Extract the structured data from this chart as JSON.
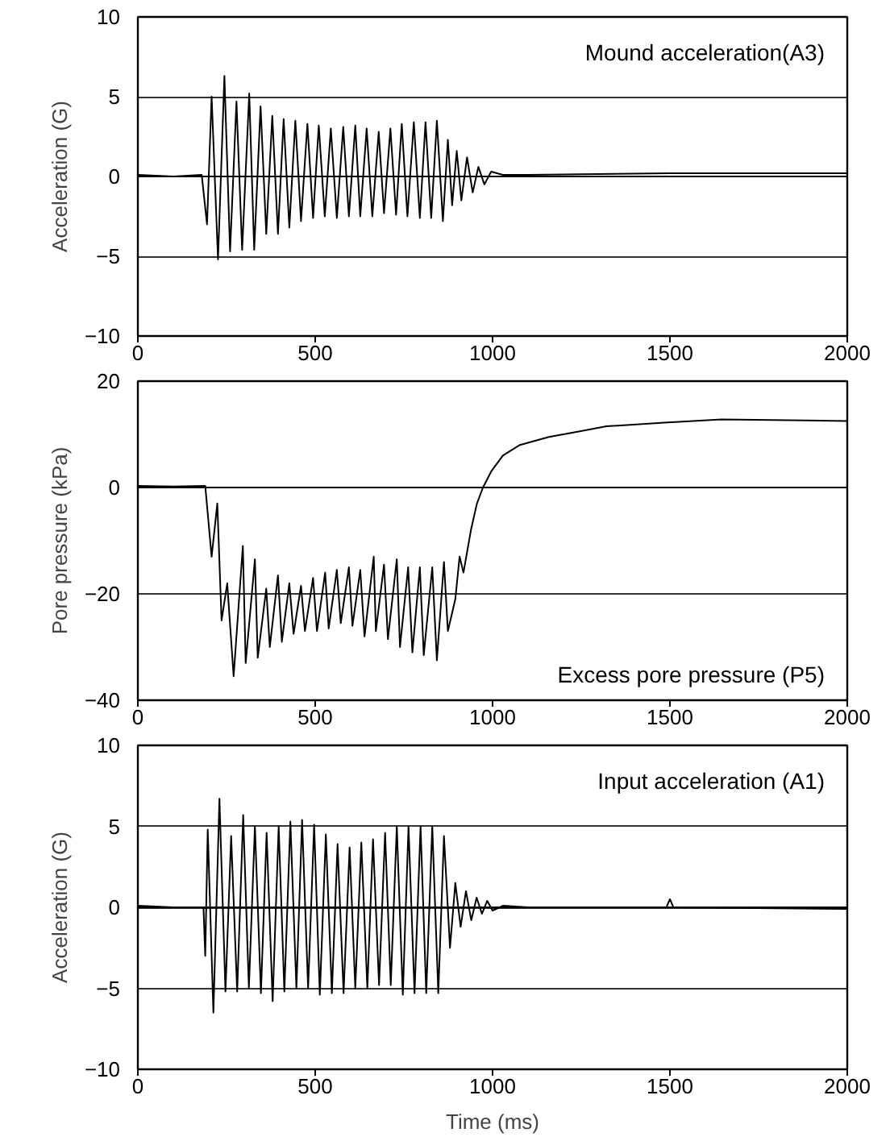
{
  "chart_data": [
    {
      "type": "line",
      "ylabel": "Acceleration (G)",
      "annotations": [
        "Mound acceleration(A3)"
      ],
      "xlim": [
        0,
        2000
      ],
      "xticks": [
        0,
        500,
        1000,
        1500,
        2000
      ],
      "ylim": [
        -10,
        10
      ],
      "yticks": [
        -10,
        -5,
        0,
        5,
        10
      ],
      "grid": "y",
      "marker": "none",
      "line_style": "solid",
      "series": [
        {
          "color": "#000000",
          "x": [
            0,
            100,
            180,
            195,
            208,
            226,
            244,
            260,
            278,
            294,
            314,
            328,
            346,
            362,
            379,
            395,
            411,
            427,
            444,
            460,
            478,
            494,
            510,
            527,
            544,
            561,
            579,
            595,
            613,
            627,
            645,
            661,
            679,
            694,
            712,
            728,
            744,
            760,
            778,
            795,
            811,
            827,
            843,
            860,
            874,
            886,
            899,
            912,
            928,
            944,
            960,
            977,
            996,
            1029,
            1100,
            1500,
            2000
          ],
          "values": [
            0.1,
            0.0,
            0.1,
            -3.0,
            5.0,
            -5.2,
            6.3,
            -4.7,
            4.7,
            -4.6,
            5.2,
            -4.6,
            4.4,
            -3.6,
            3.8,
            -3.6,
            3.6,
            -3.2,
            3.5,
            -2.8,
            3.3,
            -2.6,
            3.2,
            -2.5,
            3.0,
            -2.6,
            3.1,
            -2.5,
            3.2,
            -2.5,
            3.0,
            -2.5,
            2.8,
            -2.3,
            3.0,
            -2.4,
            3.3,
            -2.5,
            3.4,
            -2.6,
            3.4,
            -2.6,
            3.5,
            -2.8,
            2.3,
            -1.8,
            1.6,
            -1.5,
            1.2,
            -1.0,
            0.6,
            -0.5,
            0.3,
            0.1,
            0.1,
            0.2,
            0.2
          ]
        }
      ]
    },
    {
      "type": "line",
      "ylabel": "Pore pressure (kPa)",
      "annotations": [
        "Excess pore pressure (P5)"
      ],
      "xlim": [
        0,
        2000
      ],
      "xticks": [
        0,
        500,
        1000,
        1500,
        2000
      ],
      "ylim": [
        -40,
        20
      ],
      "yticks": [
        -40,
        -20,
        0,
        20
      ],
      "grid": "y",
      "marker": "none",
      "line_style": "solid",
      "series": [
        {
          "color": "#000000",
          "x": [
            0,
            100,
            190,
            208,
            224,
            236,
            252,
            270,
            296,
            304,
            330,
            338,
            362,
            372,
            395,
            406,
            427,
            439,
            460,
            471,
            494,
            505,
            528,
            538,
            561,
            572,
            595,
            605,
            627,
            639,
            665,
            671,
            694,
            705,
            730,
            739,
            762,
            774,
            795,
            806,
            830,
            843,
            863,
            874,
            895,
            907,
            918,
            939,
            956,
            973,
            996,
            1029,
            1077,
            1159,
            1240,
            1321,
            1484,
            1646,
            2000
          ],
          "values": [
            0.3,
            0.2,
            0.3,
            -13,
            -3,
            -25,
            -18,
            -35.5,
            -11,
            -33,
            -13.5,
            -32,
            -19,
            -30,
            -16.5,
            -29,
            -18,
            -27.5,
            -18.5,
            -27,
            -17,
            -27,
            -16,
            -26.5,
            -15.5,
            -25.5,
            -15,
            -26,
            -15.5,
            -28,
            -13,
            -27,
            -14.5,
            -28.5,
            -13.5,
            -30,
            -15,
            -31,
            -15,
            -31.5,
            -15,
            -32.5,
            -14,
            -27,
            -21,
            -13,
            -16,
            -8,
            -3,
            0,
            3,
            6,
            8,
            9.5,
            10.5,
            11.5,
            12.2,
            12.8,
            12.5
          ]
        }
      ]
    },
    {
      "type": "line",
      "xlabel": "Time (ms)",
      "ylabel": "Acceleration (G)",
      "annotations": [
        "Input acceleration (A1)"
      ],
      "xlim": [
        0,
        2000
      ],
      "xticks": [
        0,
        500,
        1000,
        1500,
        2000
      ],
      "ylim": [
        -10,
        10
      ],
      "yticks": [
        -10,
        -5,
        0,
        5,
        10
      ],
      "grid": "y",
      "marker": "none",
      "line_style": "solid",
      "series": [
        {
          "color": "#000000",
          "x": [
            0,
            100,
            185,
            190,
            197,
            213,
            230,
            247,
            263,
            280,
            297,
            313,
            330,
            347,
            363,
            380,
            397,
            413,
            430,
            447,
            463,
            480,
            497,
            513,
            530,
            547,
            563,
            580,
            597,
            613,
            630,
            647,
            663,
            680,
            697,
            713,
            730,
            747,
            763,
            780,
            797,
            813,
            830,
            847,
            863,
            880,
            895,
            910,
            925,
            940,
            955,
            970,
            985,
            1000,
            1030,
            1100,
            1490,
            1500,
            1510,
            2000
          ],
          "values": [
            0.1,
            0.0,
            0.0,
            -3.0,
            4.8,
            -6.5,
            6.7,
            -5.2,
            4.4,
            -5.2,
            5.7,
            -5.0,
            5.0,
            -5.3,
            4.6,
            -5.8,
            5.0,
            -5.2,
            5.3,
            -5.0,
            5.4,
            -5.0,
            5.1,
            -5.4,
            4.5,
            -5.3,
            3.9,
            -5.3,
            3.7,
            -5.0,
            4.0,
            -5.0,
            4.2,
            -4.8,
            4.6,
            -4.8,
            5.0,
            -5.4,
            5.0,
            -5.3,
            5.0,
            -5.3,
            5.0,
            -5.3,
            4.4,
            -2.5,
            1.5,
            -1.2,
            1.0,
            -0.8,
            0.6,
            -0.4,
            0.4,
            -0.2,
            0.1,
            0.0,
            0.0,
            0.5,
            0.0,
            -0.1
          ]
        }
      ]
    }
  ]
}
